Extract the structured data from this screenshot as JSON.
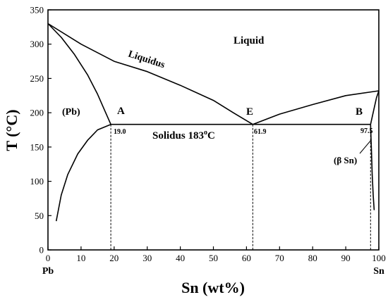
{
  "chart_data": {
    "type": "line",
    "title": "",
    "xlabel": "Sn (wt%)",
    "ylabel": "T (°C)",
    "xlim": [
      0,
      100
    ],
    "ylim": [
      0,
      350
    ],
    "x_ticks": [
      "0",
      "10",
      "20",
      "30",
      "40",
      "50",
      "60",
      "70",
      "80",
      "90",
      "100"
    ],
    "y_ticks": [
      "0",
      "50",
      "100",
      "150",
      "200",
      "250",
      "300",
      "350"
    ],
    "x_end_labels": {
      "left": "Pb",
      "right": "Sn"
    },
    "series": [
      {
        "values": [
          [
            0,
            330
          ],
          [
            10,
            300
          ],
          [
            20,
            275
          ],
          [
            30,
            260
          ],
          [
            40,
            240
          ],
          [
            50,
            218
          ],
          [
            56,
            200
          ],
          [
            61.9,
            183
          ]
        ]
      },
      {
        "values": [
          [
            61.9,
            183
          ],
          [
            70,
            198
          ],
          [
            80,
            212
          ],
          [
            90,
            225
          ],
          [
            100,
            232
          ]
        ]
      },
      {
        "values": [
          [
            19.0,
            183
          ],
          [
            97.5,
            183
          ]
        ]
      },
      {
        "values": [
          [
            0,
            330
          ],
          [
            4,
            310
          ],
          [
            8,
            285
          ],
          [
            12,
            255
          ],
          [
            15,
            227
          ],
          [
            17,
            205
          ],
          [
            19.0,
            183
          ]
        ]
      },
      {
        "values": [
          [
            19.0,
            183
          ],
          [
            15,
            175
          ],
          [
            12,
            160
          ],
          [
            9,
            140
          ],
          [
            6,
            110
          ],
          [
            4,
            80
          ],
          [
            2.5,
            42
          ]
        ]
      },
      {
        "values": [
          [
            97.5,
            183
          ],
          [
            97.6,
            170
          ],
          [
            97.8,
            140
          ],
          [
            98.0,
            110
          ],
          [
            98.3,
            80
          ],
          [
            98.6,
            58
          ]
        ]
      },
      {
        "values": [
          [
            97.5,
            183
          ],
          [
            98.5,
            205
          ],
          [
            99.3,
            222
          ],
          [
            100,
            232
          ]
        ]
      },
      {
        "values": [
          [
            19.0,
            183
          ],
          [
            19.0,
            0
          ]
        ]
      },
      {
        "values": [
          [
            61.9,
            183
          ],
          [
            61.9,
            0
          ]
        ]
      },
      {
        "values": [
          [
            97.5,
            183
          ],
          [
            97.5,
            0
          ]
        ]
      }
    ],
    "annotations": [
      {
        "text": "Liquid",
        "x": 62,
        "y": 305
      },
      {
        "text": "Liquidus",
        "x": 31,
        "y": 267
      },
      {
        "text": "(Pb)",
        "x": 7,
        "y": 200
      },
      {
        "text": "A",
        "x": 22.5,
        "y": 202
      },
      {
        "text": "E",
        "x": 61.2,
        "y": 202
      },
      {
        "text": "B",
        "x": 94,
        "y": 202
      },
      {
        "text": "19.0",
        "x": 22,
        "y": 172
      },
      {
        "text": "61.9",
        "x": 65,
        "y": 172
      },
      {
        "text": "97.5",
        "x": 94.5,
        "y": 172
      },
      {
        "text": "Solidus 183°C",
        "x": 45,
        "y": 168
      },
      {
        "text": "(β Sn)",
        "x": 89,
        "y": 130
      }
    ]
  },
  "labels": {
    "xlabel": "Sn (wt%)",
    "ylabel": "T (°C)",
    "pb": "Pb",
    "sn": "Sn",
    "liquid": "Liquid",
    "liquidus": "Liquidus",
    "pb_phase": "(Pb)",
    "point_a": "A",
    "point_e": "E",
    "point_b": "B",
    "val_a": "19.0",
    "val_e": "61.9",
    "val_b": "97.5",
    "solidus_prefix": "Solidus 183",
    "solidus_sup": "o",
    "solidus_suffix": "C",
    "beta_sn": "(β Sn)"
  }
}
